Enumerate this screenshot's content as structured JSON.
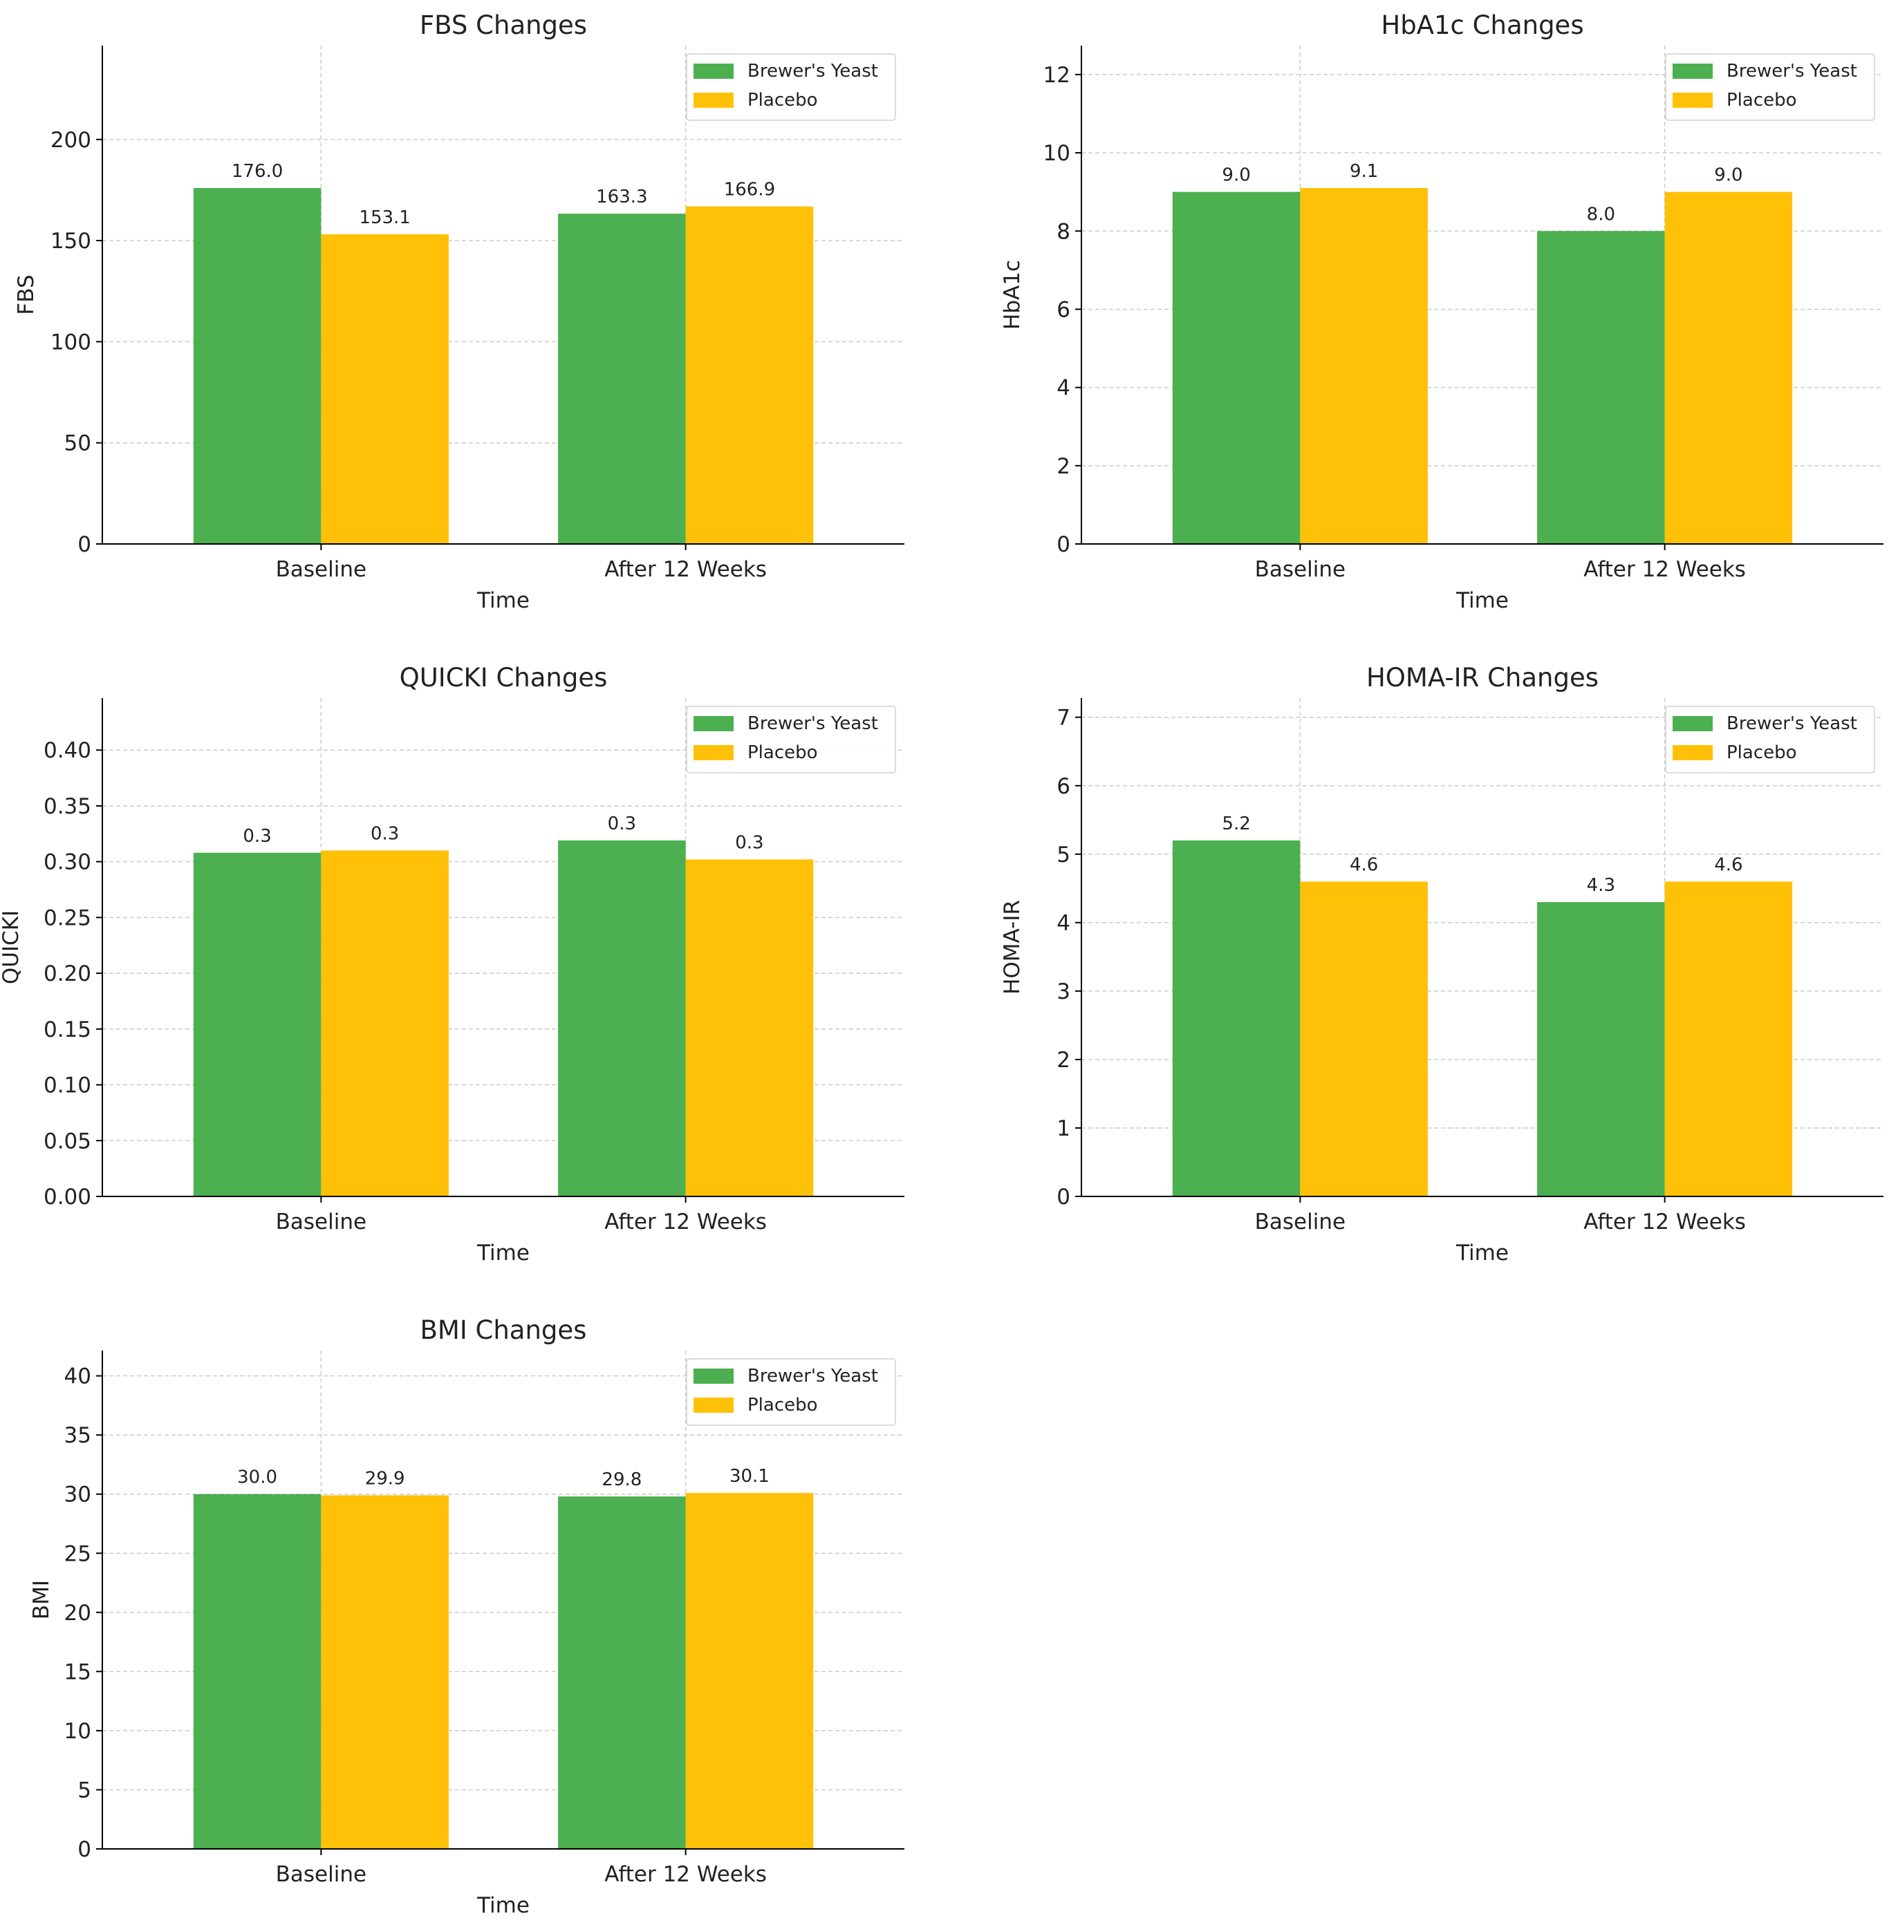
{
  "colors": {
    "series_0": "#4caf50",
    "series_1": "#ffc107",
    "grid": "#cccccc",
    "axis": "#000000",
    "text": "#222222"
  },
  "chart_data": [
    {
      "type": "bar",
      "title": "FBS Changes",
      "xlabel": "Time",
      "ylabel": "FBS",
      "categories": [
        "Baseline",
        "After 12 Weeks"
      ],
      "series": [
        {
          "name": "Brewer's Yeast",
          "values": [
            176.0,
            163.3
          ],
          "labels": [
            "176.0",
            "163.3"
          ]
        },
        {
          "name": "Placebo",
          "values": [
            153.1,
            166.9
          ],
          "labels": [
            "153.1",
            "166.9"
          ]
        }
      ],
      "ylim": [
        0,
        246.4
      ],
      "yticks": [
        0,
        50,
        100,
        150,
        200
      ],
      "ytick_labels": [
        "0",
        "50",
        "100",
        "150",
        "200"
      ],
      "legend": "top-right",
      "grid": true
    },
    {
      "type": "bar",
      "title": "HbA1c Changes",
      "xlabel": "Time",
      "ylabel": "HbA1c",
      "categories": [
        "Baseline",
        "After 12 Weeks"
      ],
      "series": [
        {
          "name": "Brewer's Yeast",
          "values": [
            9.0,
            8.0
          ],
          "labels": [
            "9.0",
            "8.0"
          ]
        },
        {
          "name": "Placebo",
          "values": [
            9.1,
            9.0
          ],
          "labels": [
            "9.1",
            "9.0"
          ]
        }
      ],
      "ylim": [
        0,
        12.74
      ],
      "yticks": [
        0,
        2,
        4,
        6,
        8,
        10,
        12
      ],
      "ytick_labels": [
        "0",
        "2",
        "4",
        "6",
        "8",
        "10",
        "12"
      ],
      "legend": "top-right",
      "grid": true
    },
    {
      "type": "bar",
      "title": "QUICKI Changes",
      "xlabel": "Time",
      "ylabel": "QUICKI",
      "categories": [
        "Baseline",
        "After 12 Weeks"
      ],
      "series": [
        {
          "name": "Brewer's Yeast",
          "values": [
            0.308,
            0.319
          ],
          "labels": [
            "0.3",
            "0.3"
          ]
        },
        {
          "name": "Placebo",
          "values": [
            0.31,
            0.302
          ],
          "labels": [
            "0.3",
            "0.3"
          ]
        }
      ],
      "ylim": [
        0,
        0.4466
      ],
      "yticks": [
        0,
        0.05,
        0.1,
        0.15,
        0.2,
        0.25,
        0.3,
        0.35,
        0.4
      ],
      "ytick_labels": [
        "0.00",
        "0.05",
        "0.10",
        "0.15",
        "0.20",
        "0.25",
        "0.30",
        "0.35",
        "0.40"
      ],
      "legend": "top-right",
      "grid": true
    },
    {
      "type": "bar",
      "title": "HOMA-IR Changes",
      "xlabel": "Time",
      "ylabel": "HOMA-IR",
      "categories": [
        "Baseline",
        "After 12 Weeks"
      ],
      "series": [
        {
          "name": "Brewer's Yeast",
          "values": [
            5.2,
            4.3
          ],
          "labels": [
            "5.2",
            "4.3"
          ]
        },
        {
          "name": "Placebo",
          "values": [
            4.6,
            4.6
          ],
          "labels": [
            "4.6",
            "4.6"
          ]
        }
      ],
      "ylim": [
        0,
        7.28
      ],
      "yticks": [
        0,
        1,
        2,
        3,
        4,
        5,
        6,
        7
      ],
      "ytick_labels": [
        "0",
        "1",
        "2",
        "3",
        "4",
        "5",
        "6",
        "7"
      ],
      "legend": "top-right",
      "grid": true
    },
    {
      "type": "bar",
      "title": "BMI Changes",
      "xlabel": "Time",
      "ylabel": "BMI",
      "categories": [
        "Baseline",
        "After 12 Weeks"
      ],
      "series": [
        {
          "name": "Brewer's Yeast",
          "values": [
            30.0,
            29.8
          ],
          "labels": [
            "30.0",
            "29.8"
          ]
        },
        {
          "name": "Placebo",
          "values": [
            29.9,
            30.1
          ],
          "labels": [
            "29.9",
            "30.1"
          ]
        }
      ],
      "ylim": [
        0,
        42.14
      ],
      "yticks": [
        0,
        5,
        10,
        15,
        20,
        25,
        30,
        35,
        40
      ],
      "ytick_labels": [
        "0",
        "5",
        "10",
        "15",
        "20",
        "25",
        "30",
        "35",
        "40"
      ],
      "legend": "top-right",
      "grid": true
    }
  ]
}
